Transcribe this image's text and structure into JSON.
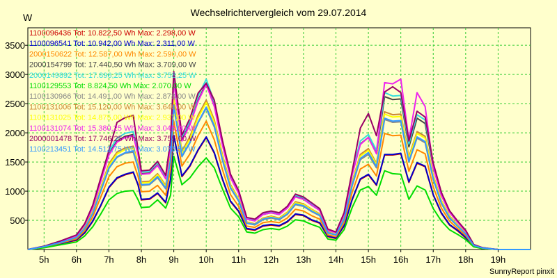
{
  "chart_data": {
    "type": "line",
    "title": "Wechselrichtervergleich vom 29.07.2014",
    "ylabel": "W",
    "footer": "SunnyReport pinxit",
    "ylim": [
      0,
      3800
    ],
    "xlim": [
      4.5,
      20.0
    ],
    "yticks": [
      500,
      1000,
      1500,
      2000,
      2500,
      3000,
      3500
    ],
    "xticks": [
      5,
      6,
      7,
      8,
      9,
      10,
      11,
      12,
      13,
      14,
      15,
      16,
      17,
      18,
      19
    ],
    "xtick_labels": [
      "5h",
      "6h",
      "7h",
      "8h",
      "9h",
      "10h",
      "11h",
      "12h",
      "13h",
      "14h",
      "15h",
      "16h",
      "17h",
      "18h",
      "19h"
    ],
    "grid": true,
    "legend_position": "top-left",
    "x": [
      4.5,
      5.0,
      5.5,
      6.0,
      6.25,
      6.5,
      6.75,
      7.0,
      7.25,
      7.5,
      7.75,
      7.9,
      8.0,
      8.25,
      8.5,
      8.75,
      8.9,
      9.0,
      9.25,
      9.5,
      9.75,
      10.0,
      10.25,
      10.5,
      10.75,
      11.0,
      11.25,
      11.5,
      11.75,
      12.0,
      12.25,
      12.5,
      12.75,
      13.0,
      13.25,
      13.5,
      13.75,
      14.0,
      14.25,
      14.5,
      14.75,
      15.0,
      15.25,
      15.5,
      15.75,
      16.0,
      16.25,
      16.5,
      16.75,
      17.0,
      17.25,
      17.5,
      17.75,
      18.0,
      18.25,
      18.5,
      18.75,
      19.0,
      19.25,
      19.5,
      19.75,
      20.0
    ],
    "series": [
      {
        "name": "1100096436",
        "legend": "1100096436 Tot: 10.822,50 Wh Max: 2.298,00 W",
        "color": "#cc0000",
        "values": [
          0,
          40,
          100,
          160,
          280,
          480,
          750,
          1060,
          1220,
          1280,
          1320,
          1100,
          850,
          860,
          960,
          800,
          1200,
          1950,
          1250,
          1430,
          1700,
          1920,
          1650,
          1200,
          820,
          650,
          350,
          330,
          400,
          420,
          400,
          470,
          600,
          580,
          500,
          450,
          220,
          190,
          400,
          850,
          1200,
          1280,
          1100,
          1620,
          1620,
          1640,
          1150,
          1480,
          1420,
          930,
          620,
          420,
          320,
          200,
          50,
          20,
          10,
          0,
          0,
          0,
          0,
          0
        ]
      },
      {
        "name": "1100096541",
        "legend": "1100096541 Tot: 10.942,00 Wh Max: 2.311,00 W",
        "color": "#0000cc",
        "values": [
          0,
          40,
          100,
          170,
          290,
          490,
          760,
          1070,
          1230,
          1290,
          1330,
          1110,
          860,
          870,
          970,
          810,
          1210,
          1960,
          1260,
          1440,
          1710,
          1930,
          1660,
          1210,
          830,
          660,
          360,
          340,
          410,
          430,
          410,
          480,
          610,
          590,
          510,
          460,
          230,
          200,
          410,
          860,
          1210,
          1290,
          1110,
          1630,
          1630,
          1650,
          1160,
          1490,
          1430,
          940,
          630,
          430,
          330,
          210,
          55,
          22,
          10,
          0,
          0,
          0,
          0,
          0
        ]
      },
      {
        "name": "2000150622",
        "legend": "2000150622 Tot: 12.587,00 Wh Max: 2.590,00 W",
        "color": "#ff8800",
        "values": [
          0,
          45,
          110,
          185,
          320,
          560,
          900,
          1250,
          1420,
          1480,
          1500,
          1250,
          990,
          1000,
          1100,
          930,
          1380,
          2200,
          1430,
          1640,
          1950,
          2200,
          1880,
          1370,
          940,
          740,
          400,
          380,
          460,
          480,
          460,
          540,
          690,
          660,
          580,
          520,
          250,
          220,
          460,
          980,
          1380,
          1460,
          1260,
          1990,
          1950,
          1960,
          1340,
          1710,
          1640,
          1070,
          710,
          490,
          360,
          240,
          60,
          25,
          12,
          0,
          0,
          0,
          0,
          0
        ]
      },
      {
        "name": "2000154799",
        "legend": "2000154799 Tot: 17.440,50 Wh Max: 3.709,00 W",
        "color": "#444444",
        "values": [
          0,
          55,
          140,
          240,
          420,
          720,
          1180,
          1640,
          1860,
          1940,
          1970,
          1640,
          1300,
          1310,
          1450,
          1220,
          1810,
          2900,
          1880,
          2160,
          2560,
          2850,
          2470,
          1800,
          1240,
          970,
          530,
          500,
          600,
          630,
          600,
          710,
          910,
          870,
          760,
          680,
          330,
          290,
          600,
          1290,
          1810,
          1920,
          1650,
          2620,
          2570,
          2580,
          1760,
          2250,
          2160,
          1410,
          930,
          640,
          470,
          310,
          80,
          33,
          15,
          0,
          0,
          0,
          0,
          0
        ]
      },
      {
        "name": "2000149892",
        "legend": "2000149892 Tot: 17.896,25 Wh Max: 3.758,25 W",
        "color": "#33dddd",
        "values": [
          0,
          55,
          145,
          245,
          430,
          740,
          1210,
          1680,
          1910,
          1990,
          2020,
          1680,
          1330,
          1340,
          1490,
          1250,
          1860,
          2970,
          1930,
          2210,
          2630,
          2920,
          2530,
          1850,
          1270,
          1000,
          540,
          510,
          620,
          650,
          620,
          730,
          930,
          890,
          780,
          700,
          340,
          300,
          620,
          1320,
          1860,
          1970,
          1700,
          2690,
          2630,
          2640,
          1810,
          2310,
          2220,
          1450,
          950,
          660,
          480,
          320,
          82,
          34,
          15,
          0,
          0,
          0,
          0,
          0
        ]
      },
      {
        "name": "1100129553",
        "legend": "1100129553 Tot: 8.824,50 Wh Max: 2.070,00 W",
        "color": "#00dd00",
        "values": [
          0,
          30,
          80,
          130,
          230,
          390,
          610,
          850,
          960,
          1000,
          1010,
          850,
          720,
          730,
          850,
          710,
          930,
          1600,
          1110,
          1230,
          1420,
          1570,
          1400,
          1040,
          710,
          560,
          300,
          280,
          340,
          360,
          340,
          400,
          510,
          490,
          430,
          380,
          180,
          160,
          340,
          720,
          1020,
          1080,
          930,
          1350,
          1300,
          1290,
          860,
          1090,
          1020,
          700,
          490,
          340,
          260,
          170,
          45,
          18,
          8,
          0,
          0,
          0,
          0,
          0
        ]
      },
      {
        "name": "1100130966",
        "legend": "1100130966 Tot: 14.491,00 Wh Max: 2.878,00 W",
        "color": "#888888",
        "values": [
          0,
          48,
          120,
          205,
          360,
          620,
          1000,
          1390,
          1580,
          1650,
          1670,
          1390,
          1100,
          1110,
          1230,
          1040,
          1530,
          2460,
          1590,
          1830,
          2170,
          2420,
          2100,
          1530,
          1050,
          830,
          450,
          420,
          510,
          540,
          510,
          600,
          770,
          740,
          650,
          580,
          280,
          250,
          510,
          1090,
          1540,
          1630,
          1400,
          2230,
          2180,
          2190,
          1500,
          1910,
          1830,
          1200,
          790,
          540,
          400,
          270,
          68,
          28,
          13,
          0,
          0,
          0,
          0,
          0
        ]
      },
      {
        "name": "1100131006",
        "legend": "1100131006 Tot: 15.120,00 Wh Max: 3.646,00 W",
        "color": "#cc8833",
        "values": [
          0,
          50,
          125,
          215,
          380,
          650,
          1060,
          1470,
          1670,
          1740,
          1770,
          1470,
          1160,
          1170,
          1300,
          1100,
          1620,
          2600,
          1680,
          1940,
          2300,
          2560,
          2220,
          1620,
          1110,
          870,
          470,
          440,
          540,
          570,
          540,
          640,
          820,
          780,
          690,
          610,
          300,
          260,
          540,
          1160,
          1630,
          1730,
          1480,
          2360,
          2310,
          2320,
          1590,
          2020,
          1940,
          1270,
          840,
          580,
          420,
          280,
          72,
          30,
          14,
          0,
          0,
          0,
          0,
          0
        ]
      },
      {
        "name": "1100131025",
        "legend": "1100131025 Tot: 14.875,00 Wh Max: 2.937,00 W",
        "color": "#ffff00",
        "values": [
          0,
          50,
          125,
          210,
          370,
          640,
          1040,
          1440,
          1640,
          1710,
          1740,
          1440,
          1140,
          1150,
          1280,
          1080,
          1590,
          2560,
          1650,
          1900,
          2260,
          2520,
          2180,
          1590,
          1090,
          860,
          460,
          430,
          530,
          560,
          530,
          630,
          800,
          770,
          680,
          600,
          290,
          260,
          530,
          1140,
          1600,
          1700,
          1460,
          2320,
          2270,
          2280,
          1560,
          1990,
          1910,
          1250,
          830,
          570,
          410,
          280,
          70,
          29,
          13,
          0,
          0,
          0,
          0,
          0
        ]
      },
      {
        "name": "1100131074",
        "legend": "1100131074 Tot: 15.380,25 Wh Max: 3.045,00 W",
        "color": "#ee22ee",
        "values": [
          0,
          55,
          140,
          240,
          420,
          720,
          1170,
          1620,
          1840,
          1920,
          1950,
          1620,
          1290,
          1300,
          1440,
          1210,
          1790,
          2870,
          1860,
          2140,
          2540,
          2830,
          2450,
          1790,
          1230,
          960,
          520,
          490,
          600,
          630,
          600,
          710,
          900,
          860,
          760,
          670,
          330,
          290,
          600,
          1280,
          1800,
          1920,
          1640,
          2860,
          2840,
          2920,
          1880,
          2690,
          2450,
          1400,
          930,
          640,
          470,
          310,
          80,
          33,
          15,
          0,
          0,
          0,
          0,
          0
        ]
      },
      {
        "name": "2000001478",
        "legend": "2000001478 Tot: 17.746,25 Wh Max: 3.755,00 W",
        "color": "#990066",
        "values": [
          0,
          57,
          145,
          250,
          440,
          760,
          1230,
          1700,
          2180,
          2260,
          2300,
          1700,
          1350,
          1360,
          1510,
          1270,
          1880,
          3050,
          1960,
          2250,
          2680,
          2850,
          2560,
          1870,
          1290,
          1010,
          550,
          520,
          630,
          660,
          630,
          740,
          950,
          900,
          800,
          700,
          350,
          300,
          630,
          1340,
          2080,
          2330,
          1950,
          2700,
          2790,
          2690,
          1860,
          2370,
          2270,
          1480,
          980,
          670,
          490,
          330,
          85,
          35,
          16,
          0,
          0,
          0,
          0,
          0
        ]
      },
      {
        "name": "1100213451",
        "legend": "1100213451 Tot: 14.512,75 Wh Max: 3.070,50 W",
        "color": "#3399ff",
        "values": [
          0,
          50,
          120,
          210,
          360,
          620,
          1010,
          1400,
          1590,
          1660,
          1690,
          1400,
          1110,
          1120,
          1250,
          1050,
          1550,
          2480,
          1600,
          1840,
          2180,
          2440,
          2120,
          1540,
          1060,
          840,
          450,
          430,
          520,
          550,
          520,
          610,
          780,
          750,
          660,
          590,
          290,
          250,
          520,
          1110,
          1560,
          1660,
          1420,
          2250,
          2200,
          2210,
          1510,
          1930,
          1850,
          1210,
          800,
          550,
          400,
          270,
          69,
          28,
          13,
          0,
          0,
          0,
          0,
          0
        ]
      }
    ]
  }
}
